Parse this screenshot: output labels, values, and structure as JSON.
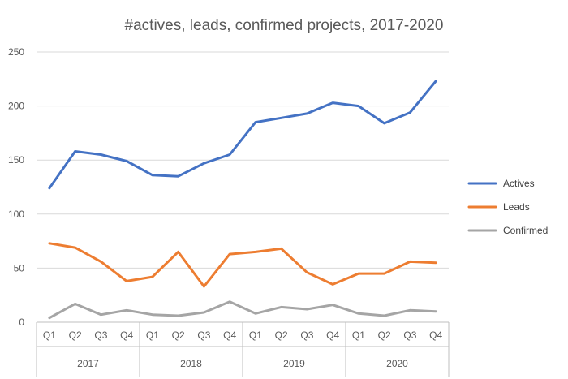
{
  "chart_data": {
    "type": "line",
    "title": "#actives, leads, confirmed projects, 2017-2020",
    "xlabel": "",
    "ylabel": "",
    "ylim": [
      0,
      250
    ],
    "yticks": [
      0,
      50,
      100,
      150,
      200,
      250
    ],
    "grid": true,
    "legend_position": "right",
    "categories": [
      "Q1",
      "Q2",
      "Q3",
      "Q4",
      "Q1",
      "Q2",
      "Q3",
      "Q4",
      "Q1",
      "Q2",
      "Q3",
      "Q4",
      "Q1",
      "Q2",
      "Q3",
      "Q4"
    ],
    "groups": [
      {
        "label": "2017",
        "count": 4
      },
      {
        "label": "2018",
        "count": 4
      },
      {
        "label": "2019",
        "count": 4
      },
      {
        "label": "2020",
        "count": 4
      }
    ],
    "series": [
      {
        "name": "Actives",
        "color": "#4472C4",
        "values": [
          124,
          158,
          155,
          149,
          136,
          135,
          147,
          155,
          185,
          189,
          193,
          203,
          200,
          184,
          194,
          223
        ]
      },
      {
        "name": "Leads",
        "color": "#ED7D31",
        "values": [
          73,
          69,
          56,
          38,
          42,
          65,
          33,
          63,
          65,
          68,
          46,
          35,
          45,
          45,
          56,
          55
        ]
      },
      {
        "name": "Confirmed",
        "color": "#A5A5A5",
        "values": [
          4,
          17,
          7,
          11,
          7,
          6,
          9,
          19,
          8,
          14,
          12,
          16,
          8,
          6,
          11,
          10
        ]
      }
    ]
  }
}
